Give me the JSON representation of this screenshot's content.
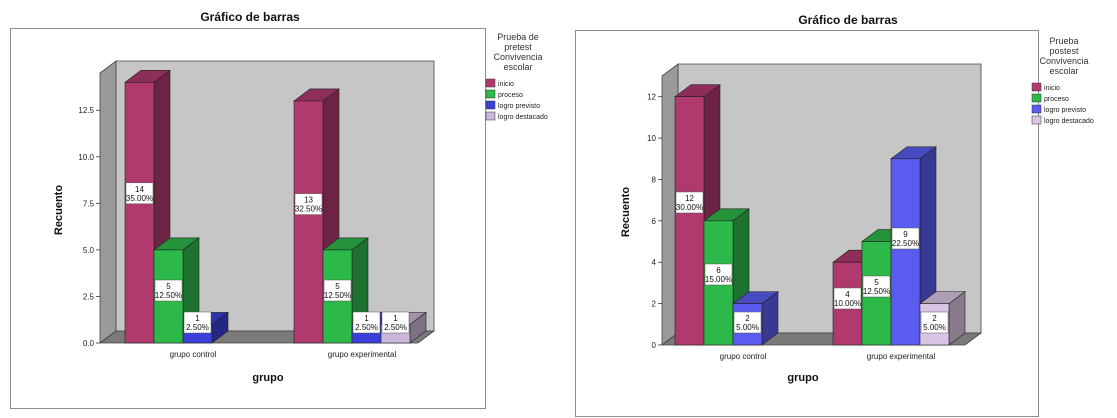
{
  "chart_data": [
    {
      "type": "bar",
      "title": "Gráfico de barras",
      "xlabel": "grupo",
      "ylabel": "Recuento",
      "categories": [
        "grupo control",
        "grupo experimental"
      ],
      "ylim": [
        0,
        14.5
      ],
      "yticks": [
        0.0,
        2.5,
        5.0,
        7.5,
        10.0,
        12.5
      ],
      "ytick_labels": [
        "0.0",
        "2.5",
        "5.0",
        "7.5",
        "10.0",
        "12.5"
      ],
      "legend_title": "Prueba de pretest Convivencia escolar",
      "legend_title_lines": [
        "Prueba de",
        "pretest",
        "Convivencia",
        "escolar"
      ],
      "legend_position": "right",
      "series": [
        {
          "name": "inicio",
          "color": "#b03a6e",
          "values": [
            14,
            13
          ],
          "labels": [
            "35.00%",
            "32.50%"
          ]
        },
        {
          "name": "proceso",
          "color": "#2db84a",
          "values": [
            5,
            5
          ],
          "labels": [
            "12.50%",
            "12.50%"
          ]
        },
        {
          "name": "logro previsto",
          "color": "#3a3fd8",
          "values": [
            1,
            1
          ],
          "labels": [
            "2.50%",
            "2.50%"
          ]
        },
        {
          "name": "logro destacado",
          "color": "#c9b6d8",
          "values": [
            0,
            1
          ],
          "labels": [
            "",
            "2.50%"
          ]
        }
      ]
    },
    {
      "type": "bar",
      "title": "Gráfico de barras",
      "xlabel": "grupo",
      "ylabel": "Recuento",
      "categories": [
        "grupo control",
        "grupo experimental"
      ],
      "ylim": [
        0,
        13
      ],
      "yticks": [
        0,
        2,
        4,
        6,
        8,
        10,
        12
      ],
      "ytick_labels": [
        "0",
        "2",
        "4",
        "6",
        "8",
        "10",
        "12"
      ],
      "legend_title": "Prueba postest Convivencia escolar",
      "legend_title_lines": [
        "Prueba",
        "postest",
        "Convivencia",
        "escolar"
      ],
      "legend_position": "right",
      "series": [
        {
          "name": "inicio",
          "color": "#b03a6e",
          "values": [
            12,
            4
          ],
          "labels": [
            "30.00%",
            "10.00%"
          ]
        },
        {
          "name": "proceso",
          "color": "#2db84a",
          "values": [
            6,
            5
          ],
          "labels": [
            "15.00%",
            "12.50%"
          ]
        },
        {
          "name": "logro previsto",
          "color": "#5a5cf0",
          "values": [
            2,
            9
          ],
          "labels": [
            "5.00%",
            "22.50%"
          ]
        },
        {
          "name": "logro destacado",
          "color": "#d9c4e4",
          "values": [
            0,
            2
          ],
          "labels": [
            "",
            "5.00%"
          ]
        }
      ]
    }
  ]
}
